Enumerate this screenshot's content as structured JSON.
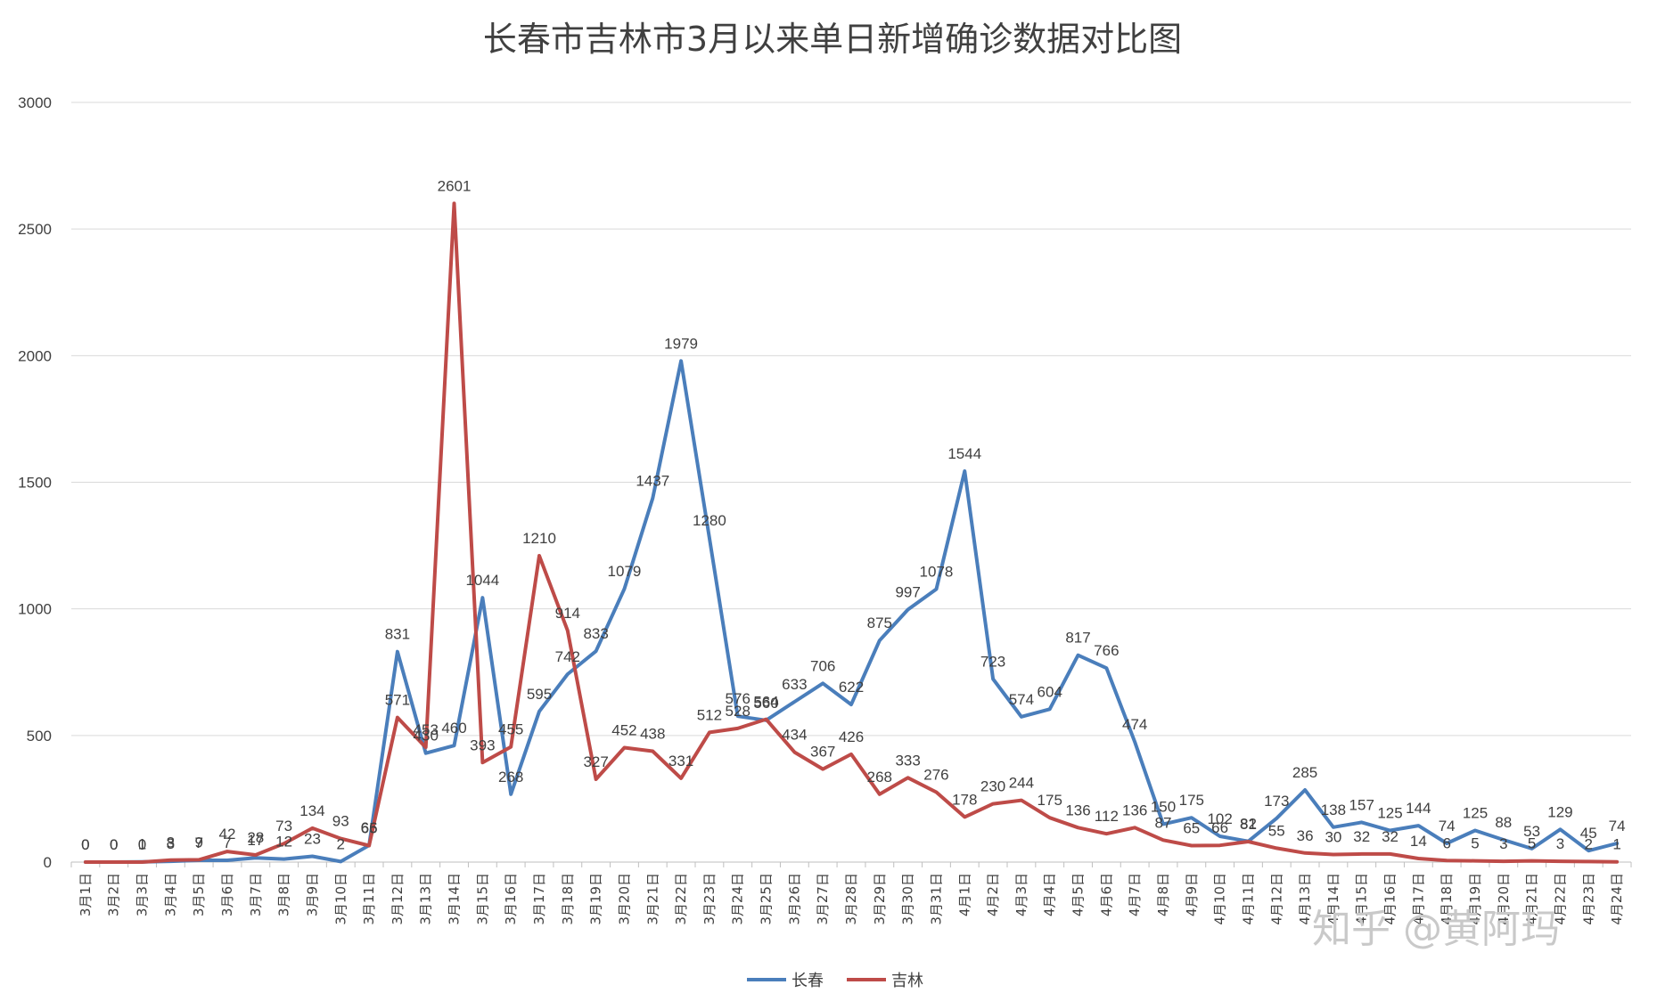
{
  "watermark": "知乎 @黄阿玛",
  "chart_data": {
    "type": "line",
    "title": "长春市吉林市3月以来单日新增确诊数据对比图",
    "xlabel": "",
    "ylabel": "",
    "ylim": [
      0,
      3000
    ],
    "yticks": [
      0,
      500,
      1000,
      1500,
      2000,
      2500,
      3000
    ],
    "grid": true,
    "legend_position": "bottom",
    "categories": [
      "3月1日",
      "3月2日",
      "3月3日",
      "3月4日",
      "3月5日",
      "3月6日",
      "3月7日",
      "3月8日",
      "3月9日",
      "3月10日",
      "3月11日",
      "3月12日",
      "3月13日",
      "3月14日",
      "3月15日",
      "3月16日",
      "3月17日",
      "3月18日",
      "3月19日",
      "3月20日",
      "3月21日",
      "3月22日",
      "3月23日",
      "3月24日",
      "3月25日",
      "3月26日",
      "3月27日",
      "3月28日",
      "3月29日",
      "3月30日",
      "3月31日",
      "4月1日",
      "4月2日",
      "4月3日",
      "4月4日",
      "4月5日",
      "4月6日",
      "4月7日",
      "4月8日",
      "4月9日",
      "4月10日",
      "4月11日",
      "4月12日",
      "4月13日",
      "4月14日",
      "4月15日",
      "4月16日",
      "4月17日",
      "4月18日",
      "4月19日",
      "4月20日",
      "4月21日",
      "4月22日",
      "4月23日",
      "4月24日"
    ],
    "series": [
      {
        "name": "长春",
        "color": "#4a7ebb",
        "values": [
          0,
          0,
          1,
          3,
          7,
          7,
          17,
          12,
          23,
          2,
          66,
          831,
          430,
          460,
          1044,
          268,
          595,
          742,
          833,
          1079,
          1437,
          1979,
          1280,
          576,
          560,
          633,
          706,
          622,
          875,
          997,
          1078,
          1544,
          723,
          574,
          604,
          817,
          766,
          474,
          150,
          175,
          102,
          82,
          173,
          285,
          138,
          157,
          125,
          144,
          74,
          125,
          88,
          53,
          129,
          45,
          74
        ]
      },
      {
        "name": "吉林",
        "color": "#be4b48",
        "values": [
          0,
          0,
          0,
          8,
          9,
          42,
          28,
          73,
          134,
          93,
          65,
          571,
          453,
          2601,
          393,
          455,
          1210,
          914,
          327,
          452,
          438,
          331,
          512,
          528,
          564,
          434,
          367,
          426,
          268,
          333,
          276,
          178,
          230,
          244,
          175,
          136,
          112,
          136,
          87,
          65,
          66,
          81,
          55,
          36,
          30,
          32,
          32,
          14,
          6,
          5,
          3,
          5,
          3,
          2,
          1
        ]
      }
    ]
  }
}
